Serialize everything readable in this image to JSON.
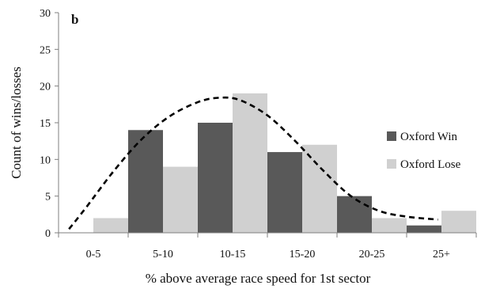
{
  "chart_data": {
    "type": "bar",
    "panel_label": "b",
    "categories": [
      "0-5",
      "5-10",
      "10-15",
      "15-20",
      "20-25",
      "25+"
    ],
    "series": [
      {
        "name": "Oxford Win",
        "color": "#595959",
        "values": [
          0,
          14,
          15,
          11,
          5,
          1
        ]
      },
      {
        "name": "Oxford Lose",
        "color": "#d0d0d0",
        "values": [
          2,
          9,
          19,
          12,
          2,
          3
        ]
      }
    ],
    "trend_curve": {
      "style": "dashed",
      "color": "#000000",
      "points": [
        [
          0.15,
          0.5
        ],
        [
          0.4,
          3.5
        ],
        [
          0.8,
          8.5
        ],
        [
          1.2,
          12.8
        ],
        [
          1.6,
          15.9
        ],
        [
          2.0,
          17.8
        ],
        [
          2.3,
          18.4
        ],
        [
          2.6,
          18.1
        ],
        [
          3.0,
          16.0
        ],
        [
          3.4,
          12.5
        ],
        [
          3.8,
          8.5
        ],
        [
          4.2,
          5.0
        ],
        [
          4.6,
          3.0
        ],
        [
          5.0,
          2.2
        ],
        [
          5.45,
          1.8
        ]
      ]
    },
    "xlabel": "% above average race speed for 1st sector",
    "ylabel": "Count of wins/losses",
    "ylim": [
      0,
      30
    ],
    "yticks": [
      0,
      5,
      10,
      15,
      20,
      25,
      30
    ],
    "grid": false,
    "legend_position": "right"
  }
}
